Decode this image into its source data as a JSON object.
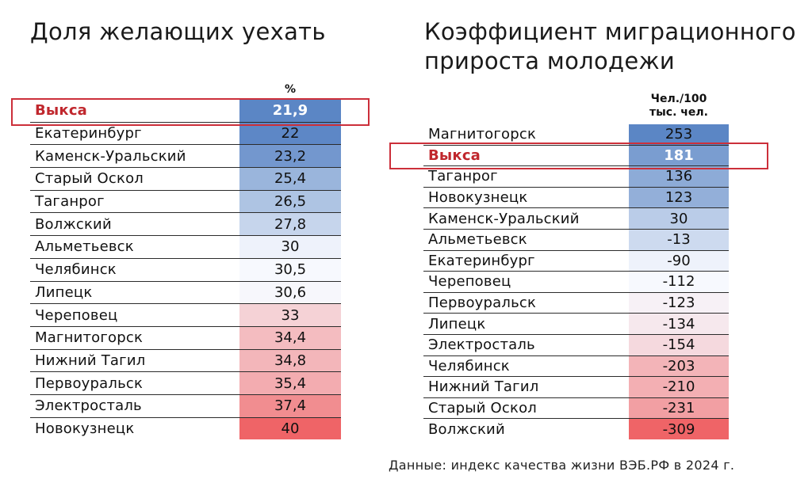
{
  "colors": {
    "highlight_text": "#c0272d",
    "highlight_box": "#cc2f3a",
    "scale_low": "#5b86c5",
    "scale_mid": "#f7f9fe",
    "scale_high": "#ef6467"
  },
  "chart_data": [
    {
      "type": "table",
      "title": "Доля желающих уехать",
      "unit": "%",
      "highlight": "Выкса",
      "rows": [
        {
          "name": "Выкса",
          "value": "21,9",
          "num": 21.9
        },
        {
          "name": "Екатеринбург",
          "value": "22",
          "num": 22
        },
        {
          "name": "Каменск-Уральский",
          "value": "23,2",
          "num": 23.2
        },
        {
          "name": "Старый Оскол",
          "value": "25,4",
          "num": 25.4
        },
        {
          "name": "Таганрог",
          "value": "26,5",
          "num": 26.5
        },
        {
          "name": "Волжский",
          "value": "27,8",
          "num": 27.8
        },
        {
          "name": "Альметьевск",
          "value": "30",
          "num": 30
        },
        {
          "name": "Челябинск",
          "value": "30,5",
          "num": 30.5
        },
        {
          "name": "Липецк",
          "value": "30,6",
          "num": 30.6
        },
        {
          "name": "Череповец",
          "value": "33",
          "num": 33
        },
        {
          "name": "Магнитогорск",
          "value": "34,4",
          "num": 34.4
        },
        {
          "name": "Нижний Тагил",
          "value": "34,8",
          "num": 34.8
        },
        {
          "name": "Первоуральск",
          "value": "35,4",
          "num": 35.4
        },
        {
          "name": "Электросталь",
          "value": "37,4",
          "num": 37.4
        },
        {
          "name": "Новокузнецк",
          "value": "40",
          "num": 40
        }
      ]
    },
    {
      "type": "table",
      "title": "Коэффициент миграционного прироста молодежи",
      "unit_line1": "Чел./100",
      "unit_line2": "тыс. чел.",
      "highlight": "Выкса",
      "rows": [
        {
          "name": "Магнитогорск",
          "value": "253",
          "num": 253
        },
        {
          "name": "Выкса",
          "value": "181",
          "num": 181
        },
        {
          "name": "Таганрог",
          "value": "136",
          "num": 136
        },
        {
          "name": "Новокузнецк",
          "value": "123",
          "num": 123
        },
        {
          "name": "Каменск-Уральский",
          "value": "30",
          "num": 30
        },
        {
          "name": "Альметьевск",
          "value": "-13",
          "num": -13
        },
        {
          "name": "Екатеринбург",
          "value": "-90",
          "num": -90
        },
        {
          "name": "Череповец",
          "value": "-112",
          "num": -112
        },
        {
          "name": "Первоуральск",
          "value": "-123",
          "num": -123
        },
        {
          "name": "Липецк",
          "value": "-134",
          "num": -134
        },
        {
          "name": "Электросталь",
          "value": "-154",
          "num": -154
        },
        {
          "name": "Челябинск",
          "value": "-203",
          "num": -203
        },
        {
          "name": "Нижний Тагил",
          "value": "-210",
          "num": -210
        },
        {
          "name": "Старый Оскол",
          "value": "-231",
          "num": -231
        },
        {
          "name": "Волжский",
          "value": "-309",
          "num": -309
        }
      ]
    }
  ],
  "source_note": "Данные: индекс качества жизни ВЭБ.РФ в 2024 г."
}
